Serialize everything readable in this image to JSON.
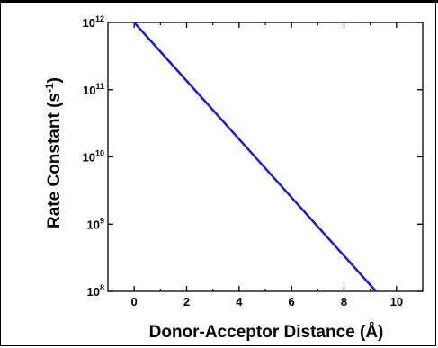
{
  "chart_data": {
    "type": "line",
    "xlabel": "Donor-Acceptor Distance (Å)",
    "ylabel_main": "Rate Constant (s",
    "ylabel_sup": "-1",
    "ylabel_close": ")",
    "xlim": [
      -1,
      11
    ],
    "ylim_log10": [
      8,
      12
    ],
    "y_scale": "log",
    "x_ticks": [
      {
        "value": 0,
        "label": "0"
      },
      {
        "value": 2,
        "label": "2"
      },
      {
        "value": 4,
        "label": "4"
      },
      {
        "value": 6,
        "label": "6"
      },
      {
        "value": 8,
        "label": "8"
      },
      {
        "value": 10,
        "label": "10"
      }
    ],
    "y_ticks": [
      {
        "exp": 8,
        "base": "10",
        "sup": "8"
      },
      {
        "exp": 9,
        "base": "10",
        "sup": "9"
      },
      {
        "exp": 10,
        "base": "10",
        "sup": "10"
      },
      {
        "exp": 11,
        "base": "10",
        "sup": "11"
      },
      {
        "exp": 12,
        "base": "10",
        "sup": "12"
      }
    ],
    "series": [
      {
        "color": "#1a1acc",
        "x": [
          0,
          9.22
        ],
        "y": [
          1000000000000.0,
          100000000.0
        ]
      }
    ]
  }
}
